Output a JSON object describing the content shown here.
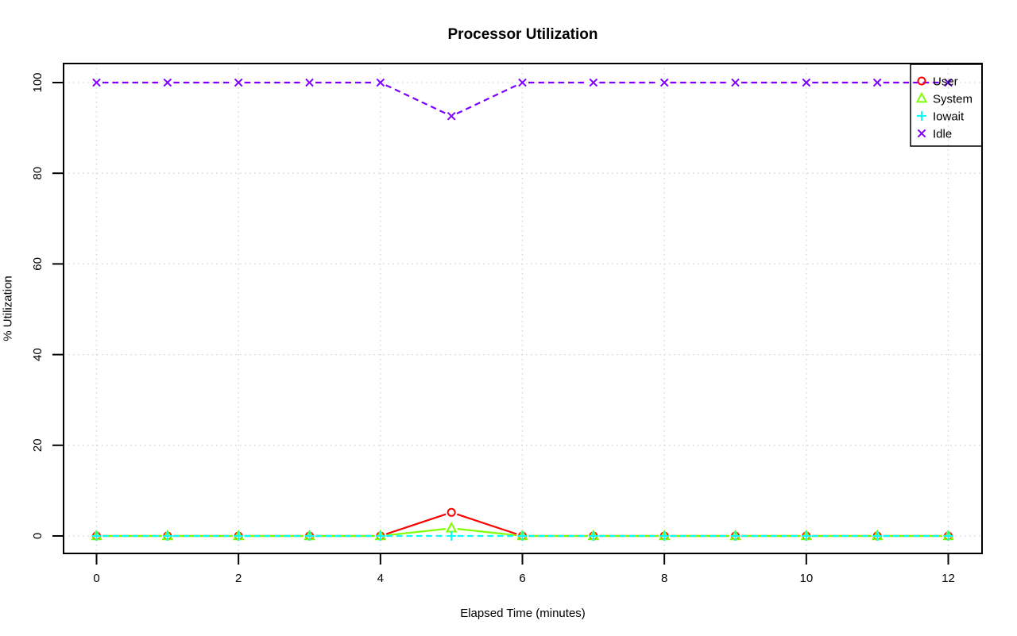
{
  "page": {
    "background": "#FFFFFF",
    "text_color": "#000000"
  },
  "chart_data": {
    "type": "line",
    "title": "Processor Utilization",
    "xlabel": "Elapsed Time (minutes)",
    "ylabel": "% Utilization",
    "xlim": [
      0,
      12
    ],
    "ylim": [
      0,
      100
    ],
    "x_ticks": [
      0,
      2,
      4,
      6,
      8,
      10,
      12
    ],
    "y_ticks": [
      0,
      20,
      40,
      60,
      80,
      100
    ],
    "grid": "dotted",
    "grid_color": "#D3D3D3",
    "axis_color": "#000000",
    "legend_position": "topright",
    "x": [
      0,
      1,
      2,
      3,
      4,
      5,
      6,
      7,
      8,
      9,
      10,
      11,
      12
    ],
    "series": [
      {
        "name": "User",
        "color": "#FF0000",
        "marker": "circle",
        "line_style": "solid",
        "values": [
          0,
          0,
          0,
          0,
          0,
          5.2,
          0,
          0,
          0,
          0,
          0,
          0,
          0
        ]
      },
      {
        "name": "System",
        "color": "#80FF00",
        "marker": "triangle",
        "line_style": "solid",
        "values": [
          0,
          0,
          0,
          0,
          0,
          1.7,
          0,
          0,
          0,
          0,
          0,
          0,
          0
        ]
      },
      {
        "name": "Iowait",
        "color": "#00FFFF",
        "marker": "plus",
        "line_style": "dashed",
        "values": [
          0,
          0,
          0,
          0,
          0,
          0,
          0,
          0,
          0,
          0,
          0,
          0,
          0
        ]
      },
      {
        "name": "Idle",
        "color": "#8000FF",
        "marker": "x",
        "line_style": "dashed",
        "values": [
          100,
          100,
          100,
          100,
          100,
          92.6,
          100,
          100,
          100,
          100,
          100,
          100,
          100
        ]
      }
    ]
  }
}
